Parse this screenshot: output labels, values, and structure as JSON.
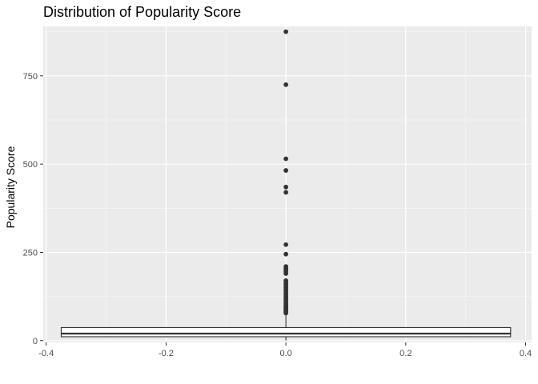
{
  "chart_data": {
    "type": "box",
    "title": "Distribution of Popularity Score",
    "xlabel": "",
    "ylabel": "Popularity Score",
    "xlim": [
      -0.405,
      0.41
    ],
    "ylim": [
      -5,
      890
    ],
    "x_ticks": [
      {
        "value": -0.4,
        "label": "-0.4"
      },
      {
        "value": -0.2,
        "label": "-0.2"
      },
      {
        "value": 0.0,
        "label": "0.0"
      },
      {
        "value": 0.2,
        "label": "0.2"
      },
      {
        "value": 0.4,
        "label": "0.4"
      }
    ],
    "y_ticks": [
      {
        "value": 0,
        "label": "0"
      },
      {
        "value": 250,
        "label": "250"
      },
      {
        "value": 500,
        "label": "500"
      },
      {
        "value": 750,
        "label": "750"
      }
    ],
    "grid": true,
    "box": {
      "x_center": 0.0,
      "x_left": -0.375,
      "x_right": 0.375,
      "min": 0,
      "q1": 11,
      "median": 20,
      "q3": 37,
      "whisker_high": 76
    },
    "outliers": [
      875,
      725,
      515,
      482,
      435,
      420,
      272,
      245,
      210,
      205,
      200,
      195,
      190,
      170,
      165,
      160,
      155,
      150,
      145,
      140,
      135,
      130,
      125,
      120,
      115,
      110,
      105,
      100,
      97,
      94,
      91,
      88,
      85,
      82,
      80,
      78
    ],
    "colors": {
      "panel": "#ebebeb",
      "grid_major": "#ffffff",
      "grid_minor": "#f5f5f5",
      "box_stroke": "#333333",
      "box_fill": "#ffffff",
      "point": "#333333",
      "tick": "#333333",
      "tick_label": "#4d4d4d"
    }
  }
}
